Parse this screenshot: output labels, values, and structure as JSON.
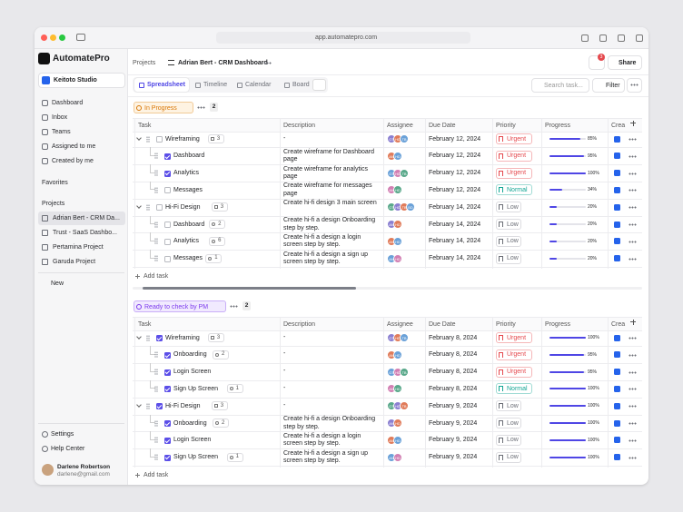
{
  "browser": {
    "url": "app.automatepro.com"
  },
  "sidebar": {
    "brand": "AutomatePro",
    "workspace": "Keitoto Studio",
    "nav": [
      "Dashboard",
      "Inbox",
      "Teams",
      "Assigned to me",
      "Created by me"
    ],
    "favorites": "Favorites",
    "projects_label": "Projects",
    "projects": [
      "Adrian Bert - CRM Da...",
      "Trust - SaaS Dashbo...",
      "Pertamina Project",
      "Garuda Project"
    ],
    "new": "New",
    "footer": [
      "Settings",
      "Help Center"
    ],
    "user": {
      "name": "Darlene Robertson",
      "email": "darlene@gmail.com"
    }
  },
  "header": {
    "breadcrumb": [
      "Projects",
      "Adrian Bert - CRM Dashboard"
    ],
    "notifications": 3,
    "share": "Share"
  },
  "toolbar": {
    "tabs": [
      "Spreadsheet",
      "Timeline",
      "Calendar",
      "Board"
    ],
    "search": "Search task...",
    "filter": "Filter"
  },
  "columns": [
    "Task",
    "Description",
    "Assignee",
    "Due Date",
    "Priority",
    "Progress",
    "Crea"
  ],
  "priority_colors": {
    "Urgent": "#e5484d",
    "Normal": "#12a594",
    "Low": "#6b6e76"
  },
  "groups": [
    {
      "label": "In Progress",
      "count": 2,
      "color": "#d97706",
      "background": "#fef3e2",
      "add": "Add task",
      "rows": [
        {
          "task": "Wireframing",
          "level": 0,
          "checked": false,
          "subtasks": 3,
          "description": "-",
          "assignees": [
            "GT",
            "HD",
            "TB"
          ],
          "due": "February 12, 2024",
          "priority": "Urgent",
          "progress": {
            "value": 85,
            "label": "85%"
          }
        },
        {
          "task": "Dashboard",
          "level": 1,
          "checked": true,
          "description": "Create wireframe for Dashboard page",
          "assignees": [
            "AN",
            "HD"
          ],
          "due": "February 12, 2024",
          "priority": "Urgent",
          "progress": {
            "value": 95,
            "label": "95%"
          }
        },
        {
          "task": "Analytics",
          "level": 1,
          "checked": true,
          "description": "Create wireframe for analytics page",
          "assignees": [
            "GT",
            "HD",
            "TB"
          ],
          "due": "February 12, 2024",
          "priority": "Urgent",
          "progress": {
            "value": 100,
            "label": "100%"
          }
        },
        {
          "task": "Messages",
          "level": 1,
          "checked": false,
          "description": "Create wireframe for messages page",
          "assignees": [
            "AN",
            "HD"
          ],
          "due": "February 12, 2024",
          "priority": "Normal",
          "progress": {
            "value": 34,
            "label": "34%"
          }
        },
        {
          "task": "Hi-Fi Design",
          "level": 0,
          "checked": false,
          "subtasks": 3,
          "description": "Create hi-fi design 3 main screen",
          "assignees": [
            "GT",
            "HD",
            "TB",
            "BD"
          ],
          "due": "February 14, 2024",
          "priority": "Low",
          "progress": {
            "value": 20,
            "label": "20%"
          }
        },
        {
          "task": "Dashboard",
          "level": 1,
          "checked": false,
          "comments": 2,
          "description": "Create hi-fi a design Onboarding step by step.",
          "assignees": [
            "AN",
            "HD"
          ],
          "due": "February 14, 2024",
          "priority": "Low",
          "progress": {
            "value": 20,
            "label": "20%"
          }
        },
        {
          "task": "Analytics",
          "level": 1,
          "checked": false,
          "comments": 6,
          "description": "Create hi-fi a design a login screen step by step.",
          "assignees": [
            "AN",
            "HD"
          ],
          "due": "February 14, 2024",
          "priority": "Low",
          "progress": {
            "value": 20,
            "label": "20%"
          }
        },
        {
          "task": "Messages",
          "level": 1,
          "checked": false,
          "comments": 1,
          "description": "Create hi-fi a design a sign up screen step by step.",
          "assignees": [
            "AN",
            "HD"
          ],
          "due": "February 14, 2024",
          "priority": "Low",
          "progress": {
            "value": 20,
            "label": "20%"
          }
        }
      ]
    },
    {
      "label": "Ready to check by PM",
      "count": 2,
      "color": "#7c3aed",
      "background": "#f1eafe",
      "add": "Add task",
      "rows": [
        {
          "task": "Wireframing",
          "level": 0,
          "checked": true,
          "subtasks": 3,
          "description": "-",
          "assignees": [
            "GT",
            "HD",
            "TB"
          ],
          "due": "February 8, 2024",
          "priority": "Urgent",
          "progress": {
            "value": 100,
            "label": "100%"
          }
        },
        {
          "task": "Onboarding",
          "level": 1,
          "checked": true,
          "comments": 2,
          "description": "-",
          "assignees": [
            "AN",
            "HD"
          ],
          "due": "February 8, 2024",
          "priority": "Urgent",
          "progress": {
            "value": 95,
            "label": "95%"
          }
        },
        {
          "task": "Login Screen",
          "level": 1,
          "checked": true,
          "description": "-",
          "assignees": [
            "GT",
            "HD",
            "TB"
          ],
          "due": "February 8, 2024",
          "priority": "Urgent",
          "progress": {
            "value": 95,
            "label": "95%"
          }
        },
        {
          "task": "Sign Up Screen",
          "level": 1,
          "checked": true,
          "comments": 1,
          "description": "-",
          "assignees": [
            "AN",
            "HD"
          ],
          "due": "February 8, 2024",
          "priority": "Normal",
          "progress": {
            "value": 100,
            "label": "100%"
          }
        },
        {
          "task": "Hi-Fi Design",
          "level": 0,
          "checked": true,
          "subtasks": 3,
          "description": "-",
          "assignees": [
            "GT",
            "HD",
            "TB"
          ],
          "due": "February 9, 2024",
          "priority": "Low",
          "progress": {
            "value": 100,
            "label": "100%"
          }
        },
        {
          "task": "Onboarding",
          "level": 1,
          "checked": true,
          "comments": 2,
          "description": "Create hi-fi a design Onboarding step by step.",
          "assignees": [
            "AN",
            "HD"
          ],
          "due": "February 9, 2024",
          "priority": "Low",
          "progress": {
            "value": 100,
            "label": "100%"
          }
        },
        {
          "task": "Login Screen",
          "level": 1,
          "checked": true,
          "description": "Create hi-fi a design a login screen step by step.",
          "assignees": [
            "AN",
            "HD"
          ],
          "due": "February 9, 2024",
          "priority": "Low",
          "progress": {
            "value": 100,
            "label": "100%"
          }
        },
        {
          "task": "Sign Up Screen",
          "level": 1,
          "checked": true,
          "comments": 1,
          "description": "Create hi-fi a design a sign up screen step by step.",
          "assignees": [
            "AN",
            "HD"
          ],
          "due": "February 9, 2024",
          "priority": "Low",
          "progress": {
            "value": 100,
            "label": "100%"
          }
        }
      ]
    }
  ]
}
